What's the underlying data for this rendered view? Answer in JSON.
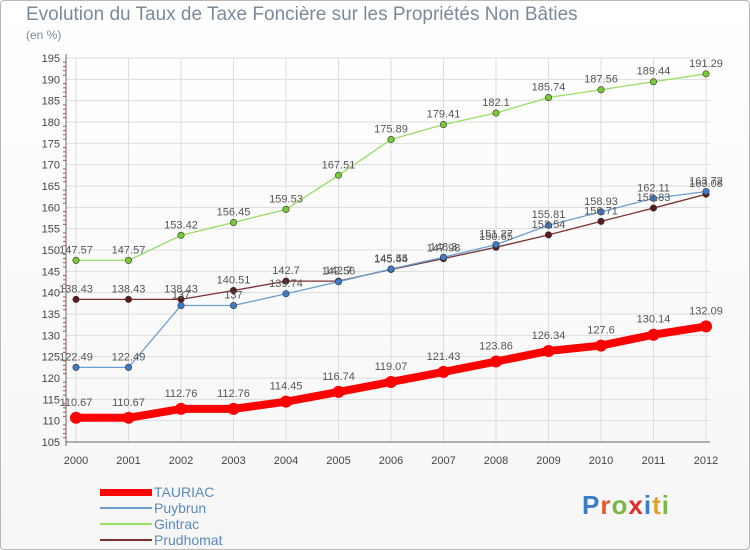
{
  "title": "Evolution du Taux de Taxe Foncière sur les Propriétés Non Bâties",
  "unit": "(en %)",
  "logo": [
    "P",
    "r",
    "o",
    "x",
    "i",
    "t",
    "i"
  ],
  "logo_colors": [
    "#3d7cc9",
    "#e25b2a",
    "#7ab648",
    "#e22d2d",
    "#3d7cc9",
    "#e2a32a",
    "#7ab648"
  ],
  "chart_data": {
    "type": "line",
    "x": [
      "2000",
      "2001",
      "2002",
      "2003",
      "2004",
      "2005",
      "2006",
      "2007",
      "2008",
      "2009",
      "2010",
      "2011",
      "2012"
    ],
    "ylim": [
      105,
      195
    ],
    "yticks": [
      105,
      110,
      115,
      120,
      125,
      130,
      135,
      140,
      145,
      150,
      155,
      160,
      165,
      170,
      175,
      180,
      185,
      190,
      195
    ],
    "grid": true,
    "legend_position": "bottom-left",
    "series": [
      {
        "name": "TAURIAC",
        "color": "#ff0000",
        "marker_color": "#ff0000",
        "width": 8,
        "values": [
          110.67,
          110.67,
          112.76,
          112.76,
          114.45,
          116.74,
          119.07,
          121.43,
          123.86,
          126.34,
          127.6,
          130.14,
          132.09
        ],
        "labels": [
          "110.67",
          "110.67",
          "112.76",
          "112.76",
          "114.45",
          "116.74",
          "119.07",
          "121.43",
          "123.86",
          "126.34",
          "127.6",
          "130.14",
          "132.09"
        ]
      },
      {
        "name": "Puybrun",
        "color": "#6a9fd0",
        "marker_color": "#3d7cc9",
        "width": 1.3,
        "values": [
          122.49,
          122.49,
          137,
          137,
          139.74,
          142.56,
          145.55,
          148.3,
          151.27,
          155.81,
          158.93,
          162.11,
          163.72
        ],
        "labels": [
          "122.49",
          "122.49",
          "137",
          "137",
          "139.74",
          "142.56",
          "145.55",
          "148.3",
          "151.27",
          "155.81",
          "158.93",
          "162.11",
          "163.72"
        ]
      },
      {
        "name": "Gintrac",
        "color": "#99dd66",
        "marker_color": "#77cc33",
        "width": 1.3,
        "values": [
          147.57,
          147.57,
          153.42,
          156.45,
          159.53,
          167.51,
          175.89,
          179.41,
          182.1,
          185.74,
          187.56,
          189.44,
          191.29
        ],
        "labels": [
          "147.57",
          "147.57",
          "153.42",
          "156.45",
          "159.53",
          "167.51",
          "175.89",
          "179.41",
          "182.1",
          "185.74",
          "187.56",
          "189.44",
          "191.29"
        ]
      },
      {
        "name": "Prudhomat",
        "color": "#7a3030",
        "marker_color": "#5a1a1a",
        "width": 1.3,
        "values": [
          138.43,
          138.43,
          138.43,
          140.51,
          142.7,
          142.7,
          145.44,
          147.98,
          150.65,
          153.54,
          156.71,
          159.83,
          163.08
        ],
        "labels": [
          "138.43",
          "138.43",
          "138.43",
          "140.51",
          "142.7",
          "142.7",
          "145.44",
          "147.98",
          "150.65",
          "153.54",
          "156.71",
          "159.83",
          "163.08"
        ]
      }
    ]
  }
}
